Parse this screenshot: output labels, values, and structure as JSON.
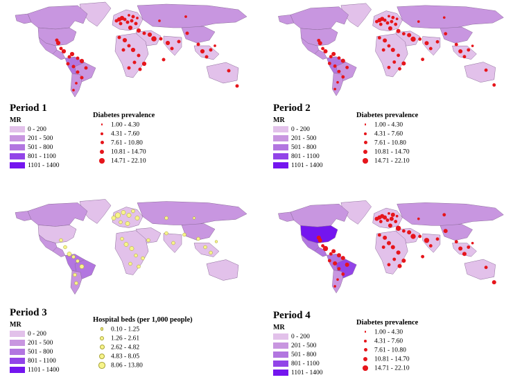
{
  "colors": {
    "mr": [
      "#e2c1ea",
      "#c896e0",
      "#b276e0",
      "#9244e8",
      "#7415ef"
    ],
    "diabetes_dot": "#e6151b",
    "hospital_dot": "#f7f48a",
    "hospital_stroke": "#a7a236",
    "ocean": "#ffffff",
    "border": "#8a6a98"
  },
  "mr_legend": {
    "title": "MR",
    "classes": [
      "0 - 200",
      "201 - 500",
      "501 - 800",
      "801 - 1100",
      "1101 - 1400"
    ]
  },
  "panels": [
    {
      "title": "Period 1",
      "indicator_title": "Diabetes prevalence",
      "indicator_classes": [
        "1.00 - 4.30",
        "4.31 - 7.60",
        "7.61 - 10.80",
        "10.81 - 14.70",
        "14.71 - 22.10"
      ],
      "symbol": "diabetes",
      "region_classes": {
        "na": 1,
        "us": 1,
        "ca": 1,
        "mx": 1,
        "ca_am": 1,
        "sa": 2,
        "br": 1,
        "gl": 0,
        "eu": 0,
        "ru": 1,
        "me": 0,
        "af": 0,
        "in": 0,
        "cn": 1,
        "sea": 0,
        "au": 0,
        "ar": 1
      }
    },
    {
      "title": "Period 2",
      "indicator_title": "Diabetes prevalence",
      "indicator_classes": [
        "1.00 - 4.30",
        "4.31 - 7.60",
        "7.61 - 10.80",
        "10.81 - 14.70",
        "14.71 - 22.10"
      ],
      "symbol": "diabetes",
      "region_classes": {
        "na": 1,
        "us": 1,
        "ca": 1,
        "mx": 1,
        "ca_am": 1,
        "sa": 2,
        "br": 1,
        "gl": 0,
        "eu": 0,
        "ru": 1,
        "me": 0,
        "af": 0,
        "in": 0,
        "cn": 1,
        "sea": 0,
        "au": 0,
        "ar": 1
      }
    },
    {
      "title": "Period 3",
      "indicator_title": "Hospital beds (per 1,000 people)",
      "indicator_classes": [
        "0.10 - 1.25",
        "1.26 - 2.61",
        "2.62 - 4.82",
        "4.83 - 8.05",
        "8.06 - 13.80"
      ],
      "symbol": "hospital",
      "region_classes": {
        "na": 1,
        "us": 0,
        "ca": 1,
        "mx": 1,
        "ca_am": 1,
        "sa": 2,
        "br": 2,
        "gl": 0,
        "eu": 0,
        "ru": 1,
        "me": 0,
        "af": 0,
        "in": 0,
        "cn": 1,
        "sea": 0,
        "au": 0,
        "ar": 1
      }
    },
    {
      "title": "Period 4",
      "indicator_title": "Diabetes prevalence",
      "indicator_classes": [
        "1.00 - 4.30",
        "4.31 - 7.60",
        "7.61 - 10.80",
        "10.81 - 14.70",
        "14.71 - 22.10"
      ],
      "symbol": "diabetes",
      "region_classes": {
        "na": 1,
        "us": 4,
        "ca": 1,
        "mx": 2,
        "ca_am": 2,
        "sa": 2,
        "br": 3,
        "gl": 0,
        "eu": 0,
        "ru": 1,
        "me": 0,
        "af": 0,
        "in": 0,
        "cn": 1,
        "sea": 0,
        "au": 0,
        "ar": 1
      }
    }
  ]
}
